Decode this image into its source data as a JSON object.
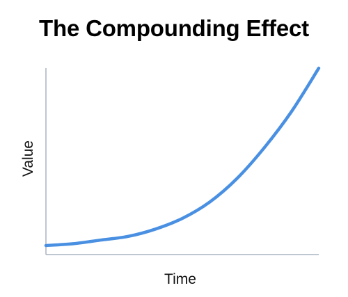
{
  "chart_data": {
    "type": "line",
    "title": "The Compounding Effect",
    "xlabel": "Time",
    "ylabel": "Value",
    "x_ticks_shown": false,
    "y_ticks_shown": false,
    "grid": false,
    "legend": "none",
    "series": [
      {
        "color": "#4A90E2",
        "x": [
          0,
          0.1,
          0.2,
          0.3,
          0.4,
          0.5,
          0.6,
          0.7,
          0.8,
          0.9,
          1.0
        ],
        "values": [
          0.02,
          0.03,
          0.05,
          0.07,
          0.11,
          0.17,
          0.26,
          0.39,
          0.56,
          0.76,
          1.0
        ]
      }
    ],
    "xlim": [
      0,
      1
    ],
    "ylim": [
      -0.03,
      1.0
    ]
  },
  "colors": {
    "axis": "#A9B4C2",
    "line": "#4A90E2"
  }
}
